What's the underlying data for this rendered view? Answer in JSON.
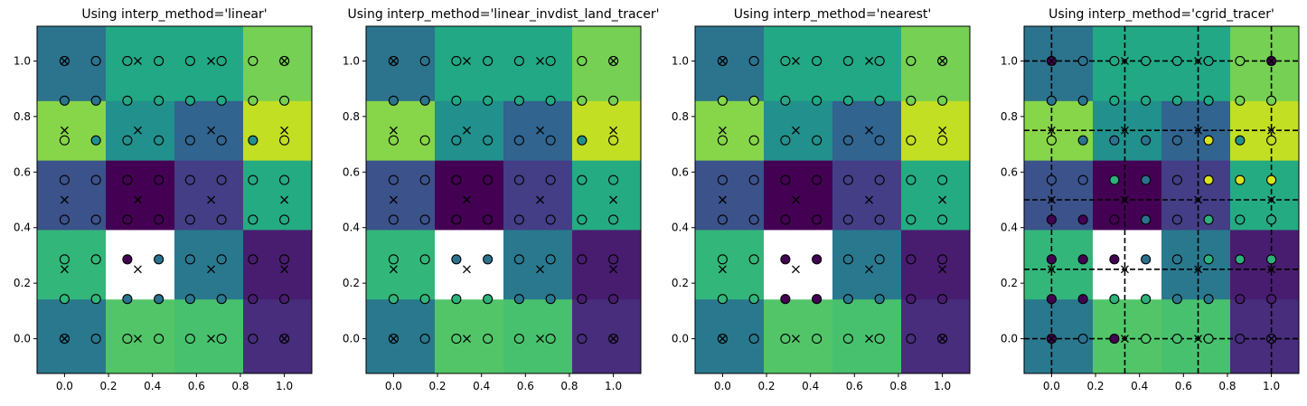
{
  "colors": {
    "grid_fill": [
      "#29788e",
      "#52c569",
      "#48c16e",
      "#472d7b",
      "#3b528b",
      "#440154",
      "#433e85",
      "#25ab82",
      "#87d549",
      "#22a884",
      "#c2df23",
      "#1f948c",
      "#2c738e",
      "#22a884",
      "#75d054",
      "#21918c"
    ],
    "point_colors": {
      "purple": "#440154",
      "blue": "#2c728e",
      "teal": "#22a884",
      "yellow": "#d9e21f",
      "green": "#2db27d"
    }
  },
  "chart_data": [
    {
      "type": "heatmap",
      "title": "Using interp_method='linear'",
      "xlim": [
        -0.125,
        1.125
      ],
      "ylim": [
        -0.125,
        1.125
      ],
      "xticks": [
        "0.0",
        "0.2",
        "0.4",
        "0.6",
        "0.8",
        "1.0"
      ],
      "yticks": [
        "0.0",
        "0.2",
        "0.4",
        "0.6",
        "0.8",
        "1.0"
      ],
      "x_edges": [
        -0.125,
        0.1875,
        0.5,
        0.8125,
        1.125
      ],
      "y_edges": [
        -0.125,
        0.1429,
        0.3929,
        0.6429,
        0.8571,
        1.125
      ],
      "grid": [
        [
          "#29788e",
          "#52c569",
          "#48c16e",
          "#472d7b"
        ],
        [
          "#33b67a",
          "nan",
          "#29788e",
          "#481d6f"
        ],
        [
          "#3b528b",
          "#440154",
          "#433e85",
          "#25ab82"
        ],
        [
          "#87d549",
          "#22908c",
          "#31648e",
          "#c2df23"
        ],
        [
          "#2c738e",
          "#22a884",
          "#22a884",
          "#75d054"
        ]
      ],
      "cell_centers": {
        "x": [
          0,
          0.3333,
          0.6667,
          1.0
        ],
        "y": [
          0,
          0.25,
          0.5,
          0.75,
          1.0
        ]
      },
      "particles": {
        "x": [
          0,
          0.1429,
          0.2857,
          0.4286,
          0.5714,
          0.7143,
          0.8571,
          1.0
        ],
        "y": [
          0,
          0.1429,
          0.2857,
          0.4286,
          0.5714,
          0.7143,
          0.8571,
          1.0
        ]
      },
      "point_colors": [
        [
          "#29788e",
          "#29788e",
          "#52c569",
          "#52c569",
          "#48c16e",
          "#48c16e",
          "#472d7b",
          "#472d7b"
        ],
        [
          "#33b67a",
          "#33b67a",
          "#2c728e",
          "#2c728e",
          "#29788e",
          "#29788e",
          "#481d6f",
          "#481d6f"
        ],
        [
          "#33b67a",
          "#33b67a",
          "#440154",
          "#2c728e",
          "#29788e",
          "#29788e",
          "#481d6f",
          "#481d6f"
        ],
        [
          "#3b528b",
          "#3b528b",
          "#440154",
          "#440154",
          "#433e85",
          "#433e85",
          "#25ab82",
          "#25ab82"
        ],
        [
          "#3b528b",
          "#3b528b",
          "#440154",
          "#440154",
          "#433e85",
          "#433e85",
          "#25ab82",
          "#25ab82"
        ],
        [
          "#87d549",
          "#22908c",
          "#22908c",
          "#22908c",
          "#31648e",
          "#31648e",
          "#22908c",
          "#c2df23"
        ],
        [
          "#2c738e",
          "#2c738e",
          "#22a884",
          "#22a884",
          "#22a884",
          "#22a884",
          "#75d054",
          "#75d054"
        ],
        [
          "#2c738e",
          "#2c738e",
          "#22a884",
          "#22a884",
          "#22a884",
          "#22a884",
          "#75d054",
          "#75d054"
        ]
      ],
      "show_grid_lines": false
    },
    {
      "type": "heatmap",
      "title": "Using interp_method='linear_invdist_land_tracer'",
      "xlim": [
        -0.125,
        1.125
      ],
      "ylim": [
        -0.125,
        1.125
      ],
      "xticks": [
        "0.0",
        "0.2",
        "0.4",
        "0.6",
        "0.8",
        "1.0"
      ],
      "yticks": [
        "0.0",
        "0.2",
        "0.4",
        "0.6",
        "0.8",
        "1.0"
      ],
      "x_edges": [
        -0.125,
        0.1875,
        0.5,
        0.8125,
        1.125
      ],
      "y_edges": [
        -0.125,
        0.1429,
        0.3929,
        0.6429,
        0.8571,
        1.125
      ],
      "grid": [
        [
          "#29788e",
          "#52c569",
          "#48c16e",
          "#472d7b"
        ],
        [
          "#33b67a",
          "nan",
          "#29788e",
          "#481d6f"
        ],
        [
          "#3b528b",
          "#440154",
          "#433e85",
          "#25ab82"
        ],
        [
          "#87d549",
          "#22908c",
          "#31648e",
          "#c2df23"
        ],
        [
          "#2c738e",
          "#22a884",
          "#22a884",
          "#75d054"
        ]
      ],
      "cell_centers": {
        "x": [
          0,
          0.3333,
          0.6667,
          1.0
        ],
        "y": [
          0,
          0.25,
          0.5,
          0.75,
          1.0
        ]
      },
      "particles": {
        "x": [
          0,
          0.1429,
          0.2857,
          0.4286,
          0.5714,
          0.7143,
          0.8571,
          1.0
        ],
        "y": [
          0,
          0.1429,
          0.2857,
          0.4286,
          0.5714,
          0.7143,
          0.8571,
          1.0
        ]
      },
      "point_colors": [
        [
          "#29788e",
          "#29788e",
          "#52c569",
          "#52c569",
          "#48c16e",
          "#48c16e",
          "#472d7b",
          "#472d7b"
        ],
        [
          "#33b67a",
          "#33b67a",
          "#2db27d",
          "#2db27d",
          "#29788e",
          "#29788e",
          "#481d6f",
          "#481d6f"
        ],
        [
          "#33b67a",
          "#33b67a",
          "#2c728e",
          "#2c728e",
          "#29788e",
          "#29788e",
          "#481d6f",
          "#481d6f"
        ],
        [
          "#3b528b",
          "#3b528b",
          "#440154",
          "#440154",
          "#433e85",
          "#433e85",
          "#25ab82",
          "#25ab82"
        ],
        [
          "#3b528b",
          "#3b528b",
          "#440154",
          "#440154",
          "#433e85",
          "#433e85",
          "#25ab82",
          "#25ab82"
        ],
        [
          "#87d549",
          "#87d549",
          "#22908c",
          "#22908c",
          "#31648e",
          "#31648e",
          "#22908c",
          "#c2df23"
        ],
        [
          "#2c738e",
          "#2c738e",
          "#22a884",
          "#22a884",
          "#22a884",
          "#22a884",
          "#75d054",
          "#75d054"
        ],
        [
          "#2c738e",
          "#2c738e",
          "#22a884",
          "#22a884",
          "#22a884",
          "#22a884",
          "#75d054",
          "#75d054"
        ]
      ],
      "show_grid_lines": false
    },
    {
      "type": "heatmap",
      "title": "Using interp_method='nearest'",
      "xlim": [
        -0.125,
        1.125
      ],
      "ylim": [
        -0.125,
        1.125
      ],
      "xticks": [
        "0.0",
        "0.2",
        "0.4",
        "0.6",
        "0.8",
        "1.0"
      ],
      "yticks": [
        "0.0",
        "0.2",
        "0.4",
        "0.6",
        "0.8",
        "1.0"
      ],
      "x_edges": [
        -0.125,
        0.1875,
        0.5,
        0.8125,
        1.125
      ],
      "y_edges": [
        -0.125,
        0.1429,
        0.3929,
        0.6429,
        0.8571,
        1.125
      ],
      "grid": [
        [
          "#29788e",
          "#52c569",
          "#48c16e",
          "#472d7b"
        ],
        [
          "#33b67a",
          "nan",
          "#29788e",
          "#481d6f"
        ],
        [
          "#3b528b",
          "#440154",
          "#433e85",
          "#25ab82"
        ],
        [
          "#87d549",
          "#22908c",
          "#31648e",
          "#c2df23"
        ],
        [
          "#2c738e",
          "#22a884",
          "#22a884",
          "#75d054"
        ]
      ],
      "cell_centers": {
        "x": [
          0,
          0.3333,
          0.6667,
          1.0
        ],
        "y": [
          0,
          0.25,
          0.5,
          0.75,
          1.0
        ]
      },
      "particles": {
        "x": [
          0,
          0.1429,
          0.2857,
          0.4286,
          0.5714,
          0.7143,
          0.8571,
          1.0
        ],
        "y": [
          0,
          0.1429,
          0.2857,
          0.4286,
          0.5714,
          0.7143,
          0.8571,
          1.0
        ]
      },
      "point_colors": [
        [
          "#29788e",
          "#29788e",
          "#52c569",
          "#52c569",
          "#48c16e",
          "#48c16e",
          "#472d7b",
          "#472d7b"
        ],
        [
          "#33b67a",
          "#33b67a",
          "#440154",
          "#440154",
          "#29788e",
          "#29788e",
          "#481d6f",
          "#481d6f"
        ],
        [
          "#33b67a",
          "#33b67a",
          "#440154",
          "#440154",
          "#29788e",
          "#29788e",
          "#481d6f",
          "#481d6f"
        ],
        [
          "#3b528b",
          "#3b528b",
          "#440154",
          "#440154",
          "#433e85",
          "#433e85",
          "#25ab82",
          "#25ab82"
        ],
        [
          "#3b528b",
          "#3b528b",
          "#440154",
          "#440154",
          "#433e85",
          "#433e85",
          "#25ab82",
          "#25ab82"
        ],
        [
          "#87d549",
          "#87d549",
          "#22908c",
          "#22908c",
          "#31648e",
          "#31648e",
          "#c2df23",
          "#c2df23"
        ],
        [
          "#87d549",
          "#87d549",
          "#22a884",
          "#22a884",
          "#22a884",
          "#22a884",
          "#75d054",
          "#75d054"
        ],
        [
          "#2c738e",
          "#2c738e",
          "#22a884",
          "#22a884",
          "#22a884",
          "#22a884",
          "#75d054",
          "#75d054"
        ]
      ],
      "show_grid_lines": false
    },
    {
      "type": "heatmap",
      "title": "Using interp_method='cgrid_tracer'",
      "xlim": [
        -0.125,
        1.125
      ],
      "ylim": [
        -0.125,
        1.125
      ],
      "xticks": [
        "0.0",
        "0.2",
        "0.4",
        "0.6",
        "0.8",
        "1.0"
      ],
      "yticks": [
        "0.0",
        "0.2",
        "0.4",
        "0.6",
        "0.8",
        "1.0"
      ],
      "x_edges": [
        -0.125,
        0.1875,
        0.5,
        0.8125,
        1.125
      ],
      "y_edges": [
        -0.125,
        0.1429,
        0.3929,
        0.6429,
        0.8571,
        1.125
      ],
      "grid": [
        [
          "#29788e",
          "#52c569",
          "#48c16e",
          "#472d7b"
        ],
        [
          "#33b67a",
          "nan",
          "#29788e",
          "#481d6f"
        ],
        [
          "#3b528b",
          "#440154",
          "#433e85",
          "#25ab82"
        ],
        [
          "#87d549",
          "#22908c",
          "#31648e",
          "#c2df23"
        ],
        [
          "#2c738e",
          "#22a884",
          "#22a884",
          "#75d054"
        ]
      ],
      "cell_centers": {
        "x": [
          0,
          0.3333,
          0.6667,
          1.0
        ],
        "y": [
          0,
          0.25,
          0.5,
          0.75,
          1.0
        ]
      },
      "particles": {
        "x": [
          0,
          0.1429,
          0.2857,
          0.4286,
          0.5714,
          0.7143,
          0.8571,
          1.0
        ],
        "y": [
          0,
          0.1429,
          0.2857,
          0.4286,
          0.5714,
          0.7143,
          0.8571,
          1.0
        ]
      },
      "point_colors": [
        [
          "#440154",
          "#2c738e",
          "#440154",
          "#52c569",
          "#48c16e",
          "#48c16e",
          "#472d7b",
          "#472d7b"
        ],
        [
          "#440154",
          "#440154",
          "#2db27d",
          "#2db27d",
          "#29788e",
          "#29788e",
          "#481d6f",
          "#481d6f"
        ],
        [
          "#440154",
          "#440154",
          "#440154",
          "#2c728e",
          "#29788e",
          "#2db27d",
          "#2db27d",
          "#2db27d"
        ],
        [
          "#440154",
          "#440154",
          "#440154",
          "#2c728e",
          "#433e85",
          "#2db27d",
          "#25ab82",
          "#25ab82"
        ],
        [
          "#3b528b",
          "#3b528b",
          "#2db27d",
          "#2c728e",
          "#433e85",
          "#d9e21f",
          "#d9e21f",
          "#d9e21f"
        ],
        [
          "#87d549",
          "#2c728e",
          "#2c728e",
          "#2c728e",
          "#31648e",
          "#d9e21f",
          "#22908c",
          "#c2df23"
        ],
        [
          "#2c738e",
          "#2c738e",
          "#22a884",
          "#22a884",
          "#22a884",
          "#22a884",
          "#75d054",
          "#75d054"
        ],
        [
          "#440154",
          "#2c738e",
          "#22a884",
          "#22a884",
          "#22a884",
          "#22a884",
          "#75d054",
          "#440154"
        ]
      ],
      "show_grid_lines": true,
      "grid_lines": {
        "x": [
          0,
          0.3333,
          0.6667,
          1.0
        ],
        "y": [
          0,
          0.25,
          0.5,
          0.75,
          1.0
        ]
      }
    }
  ]
}
